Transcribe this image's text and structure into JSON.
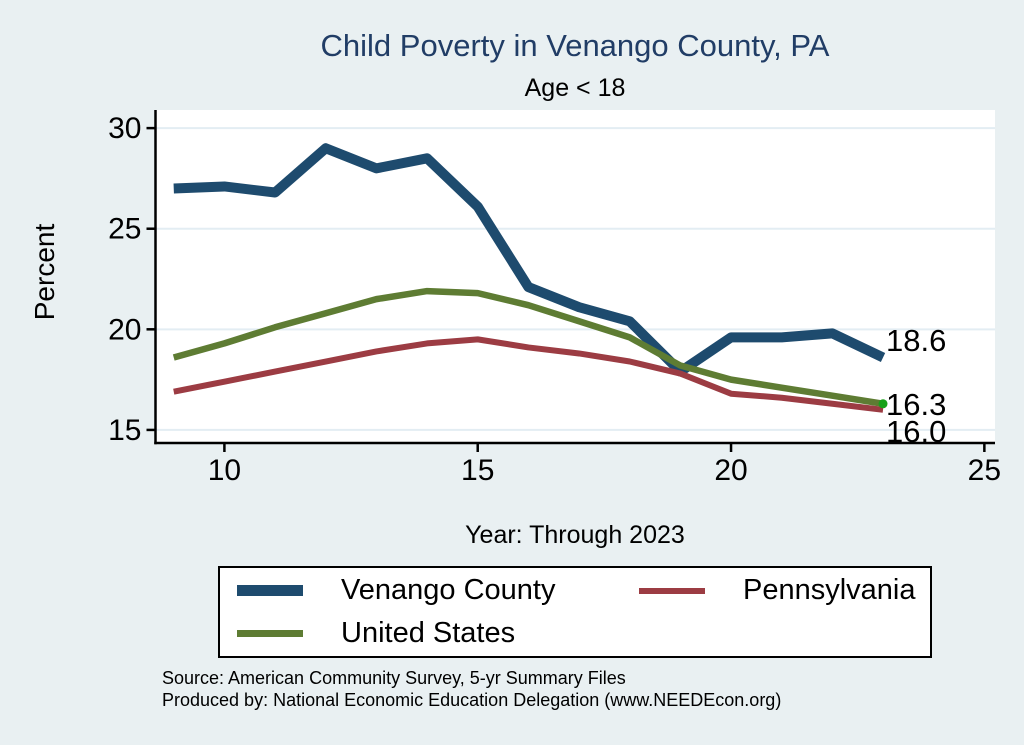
{
  "title": "Child Poverty in Venango County, PA",
  "subtitle": "Age < 18",
  "colors": {
    "background": "#e9f0f2",
    "plot_bg": "#ffffff",
    "grid": "#e3edf3",
    "axis": "#000000",
    "title_text": "#213d66",
    "venango_county": "#1e4b6e",
    "pennsylvania": "#9c3c43",
    "united_states": "#5e7c33",
    "end_marker": "#18a018"
  },
  "y_axis": {
    "label": "Percent"
  },
  "x_axis": {
    "title": "Year: Through 2023"
  },
  "end_labels": [
    {
      "text": "18.6"
    },
    {
      "text": "16.3"
    },
    {
      "text": "16.0"
    }
  ],
  "legend": {
    "items": [
      {
        "label": "Venango County",
        "color": "#1e4b6e",
        "thickness": 11
      },
      {
        "label": "Pennsylvania",
        "color": "#9c3c43",
        "thickness": 6
      },
      {
        "label": "United States",
        "color": "#5e7c33",
        "thickness": 7
      }
    ]
  },
  "source_line1": "Source: American Community Survey, 5-yr Summary Files",
  "source_line2": "Produced by: National Economic Education Delegation (www.NEEDEcon.org)",
  "chart_data": {
    "type": "line",
    "title": "Child Poverty in Venango County, PA",
    "subtitle": "Age < 18",
    "xlabel": "Year: Through 2023",
    "ylabel": "Percent",
    "x": [
      9,
      10,
      11,
      12,
      13,
      14,
      15,
      16,
      17,
      18,
      19,
      20,
      21,
      22,
      23
    ],
    "series": [
      {
        "name": "Venango County",
        "color": "#1e4b6e",
        "width": 10,
        "values": [
          27.0,
          27.1,
          26.8,
          29.0,
          28.0,
          28.5,
          26.1,
          22.1,
          21.1,
          20.4,
          17.9,
          19.6,
          19.6,
          19.8,
          18.6
        ],
        "end_label": "18.6"
      },
      {
        "name": "Pennsylvania",
        "color": "#9c3c43",
        "width": 6,
        "values": [
          16.9,
          17.4,
          17.9,
          18.4,
          18.9,
          19.3,
          19.5,
          19.1,
          18.8,
          18.4,
          17.8,
          16.8,
          16.6,
          16.3,
          16.0
        ],
        "end_label": "16.0"
      },
      {
        "name": "United States",
        "color": "#5e7c33",
        "width": 6.5,
        "values": [
          18.6,
          19.3,
          20.1,
          20.8,
          21.5,
          21.9,
          21.8,
          21.2,
          20.4,
          19.6,
          18.2,
          17.5,
          17.1,
          16.7,
          16.3
        ],
        "end_label": "16.3",
        "end_marker": true,
        "end_marker_color": "#18a018"
      }
    ],
    "xticks": [
      10,
      15,
      20,
      25
    ],
    "yticks": [
      15,
      20,
      25,
      30
    ],
    "xlim": [
      8.64,
      25.21
    ],
    "ylim": [
      14.35,
      30.9
    ],
    "grid": "horizontal",
    "legend_position": "bottom"
  }
}
